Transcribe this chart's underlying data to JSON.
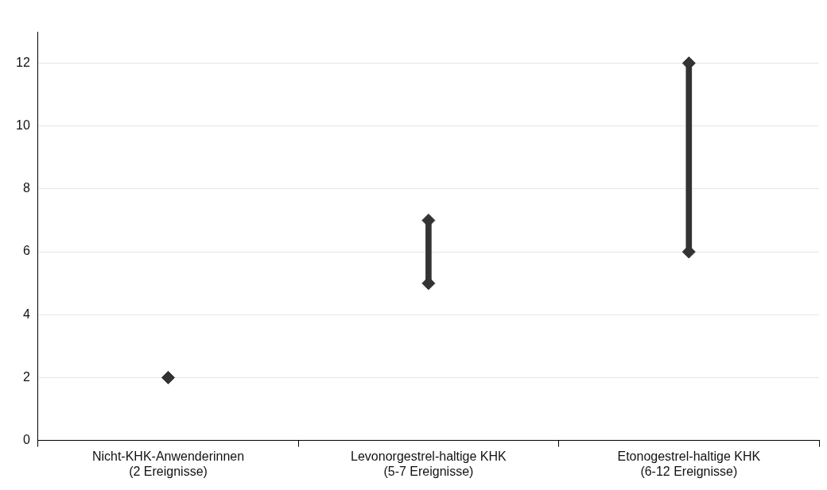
{
  "chart_data": {
    "type": "bar",
    "categories": [
      "Nicht-KHK-Anwenderinnen\n(2 Ereignisse)",
      "Levonorgestrel-haltige KHK\n(5-7 Ereignisse)",
      "Etonogestrel-haltige KHK\n(6-12 Ereignisse)"
    ],
    "series": [
      {
        "color": "#333333",
        "base": [
          null,
          5,
          6
        ],
        "values": [
          null,
          2,
          6
        ]
      },
      {
        "type": "scatter",
        "color": "#333333",
        "x": [
          "Nicht-KHK-Anwenderinnen\n(2 Ereignisse)",
          "Levonorgestrel-haltige KHK\n(5-7 Ereignisse)",
          "Etonogestrel-haltige KHK\n(6-12 Ereignisse)"
        ],
        "values": [
          2,
          5,
          6
        ]
      },
      {
        "type": "scatter",
        "color": "#333333",
        "x": [
          "Nicht-KHK-Anwenderinnen\n(2 Ereignisse)",
          "Levonorgestrel-haltige KHK\n(5-7 Ereignisse)",
          "Etonogestrel-haltige KHK\n(6-12 Ereignisse)"
        ],
        "values": [
          null,
          7,
          12
        ]
      }
    ],
    "marker": "diamond",
    "ylim": [
      0,
      13
    ],
    "yticks": [
      0,
      2,
      4,
      6,
      8,
      10,
      12
    ],
    "grid": "y",
    "legend": false
  }
}
